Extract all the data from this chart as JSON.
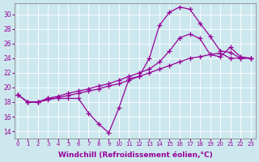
{
  "background_color": "#cce8ee",
  "line_color": "#990099",
  "marker": "+",
  "markersize": 4,
  "linewidth": 0.9,
  "xlabel": "Windchill (Refroidissement éolien,°C)",
  "xlabel_fontsize": 6.5,
  "ytick_labels": [
    "14",
    "16",
    "18",
    "20",
    "22",
    "24",
    "26",
    "28",
    "30"
  ],
  "ytick_values": [
    14,
    16,
    18,
    20,
    22,
    24,
    26,
    28,
    30
  ],
  "xtick_values": [
    0,
    1,
    2,
    3,
    4,
    5,
    6,
    7,
    8,
    9,
    10,
    11,
    12,
    13,
    14,
    15,
    16,
    17,
    18,
    19,
    20,
    21,
    22,
    23
  ],
  "ylim": [
    13.0,
    31.5
  ],
  "xlim": [
    -0.3,
    23.5
  ],
  "lines": [
    {
      "x": [
        0,
        1,
        2,
        3,
        4,
        5,
        6,
        7,
        8,
        9,
        10,
        11,
        12,
        13,
        14,
        15,
        16,
        17,
        18,
        19,
        20,
        21,
        22,
        23
      ],
      "y": [
        19,
        18,
        18,
        18.5,
        18.5,
        18.5,
        18.5,
        16.5,
        15.0,
        13.8,
        17.2,
        21.2,
        21.5,
        24.0,
        28.5,
        30.3,
        31.0,
        30.7,
        28.8,
        27.0,
        25.0,
        24.8,
        24.0,
        24.0
      ]
    },
    {
      "x": [
        0,
        1,
        2,
        3,
        4,
        5,
        6,
        7,
        8,
        9,
        10,
        11,
        12,
        13,
        14,
        15,
        16,
        17,
        18,
        19,
        20,
        21,
        22,
        23
      ],
      "y": [
        19,
        18,
        18,
        18.5,
        18.8,
        19.2,
        19.5,
        19.8,
        20.2,
        20.5,
        21.0,
        21.5,
        22.0,
        22.5,
        23.5,
        25.0,
        26.8,
        27.3,
        26.7,
        24.5,
        24.2,
        25.5,
        24.2,
        24.0
      ]
    },
    {
      "x": [
        0,
        1,
        2,
        3,
        4,
        5,
        6,
        7,
        8,
        9,
        10,
        11,
        12,
        13,
        14,
        15,
        16,
        17,
        18,
        19,
        20,
        21,
        22,
        23
      ],
      "y": [
        19,
        18,
        18,
        18.3,
        18.6,
        18.9,
        19.2,
        19.5,
        19.8,
        20.2,
        20.5,
        21.0,
        21.5,
        22.0,
        22.5,
        23.0,
        23.5,
        24.0,
        24.2,
        24.5,
        24.7,
        24.0,
        24.0,
        24.0
      ]
    }
  ]
}
